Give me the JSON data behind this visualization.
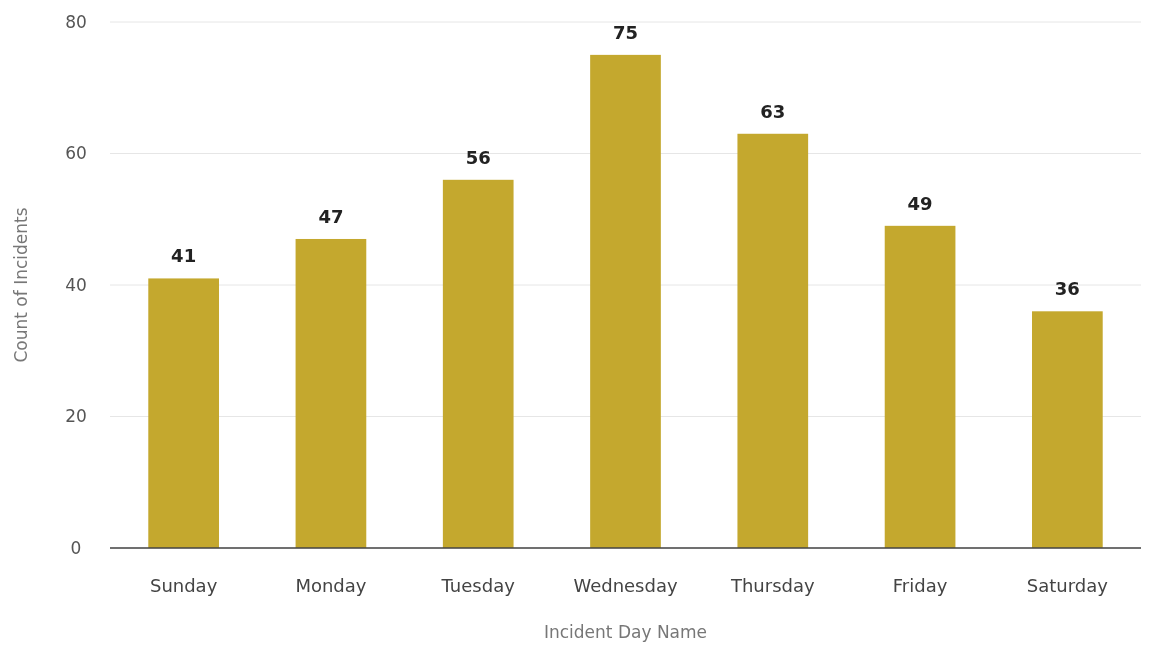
{
  "chart_data": {
    "type": "bar",
    "xlabel": "Incident Day Name",
    "ylabel": "Count of Incidents",
    "categories": [
      "Sunday",
      "Monday",
      "Tuesday",
      "Wednesday",
      "Thursday",
      "Friday",
      "Saturday"
    ],
    "values": [
      41,
      47,
      56,
      75,
      63,
      49,
      36
    ],
    "color": "#c4a82e",
    "ylim": [
      0,
      80
    ],
    "yticks": [
      0,
      20,
      40,
      60,
      80
    ],
    "grid": "y",
    "data_labels": true
  }
}
